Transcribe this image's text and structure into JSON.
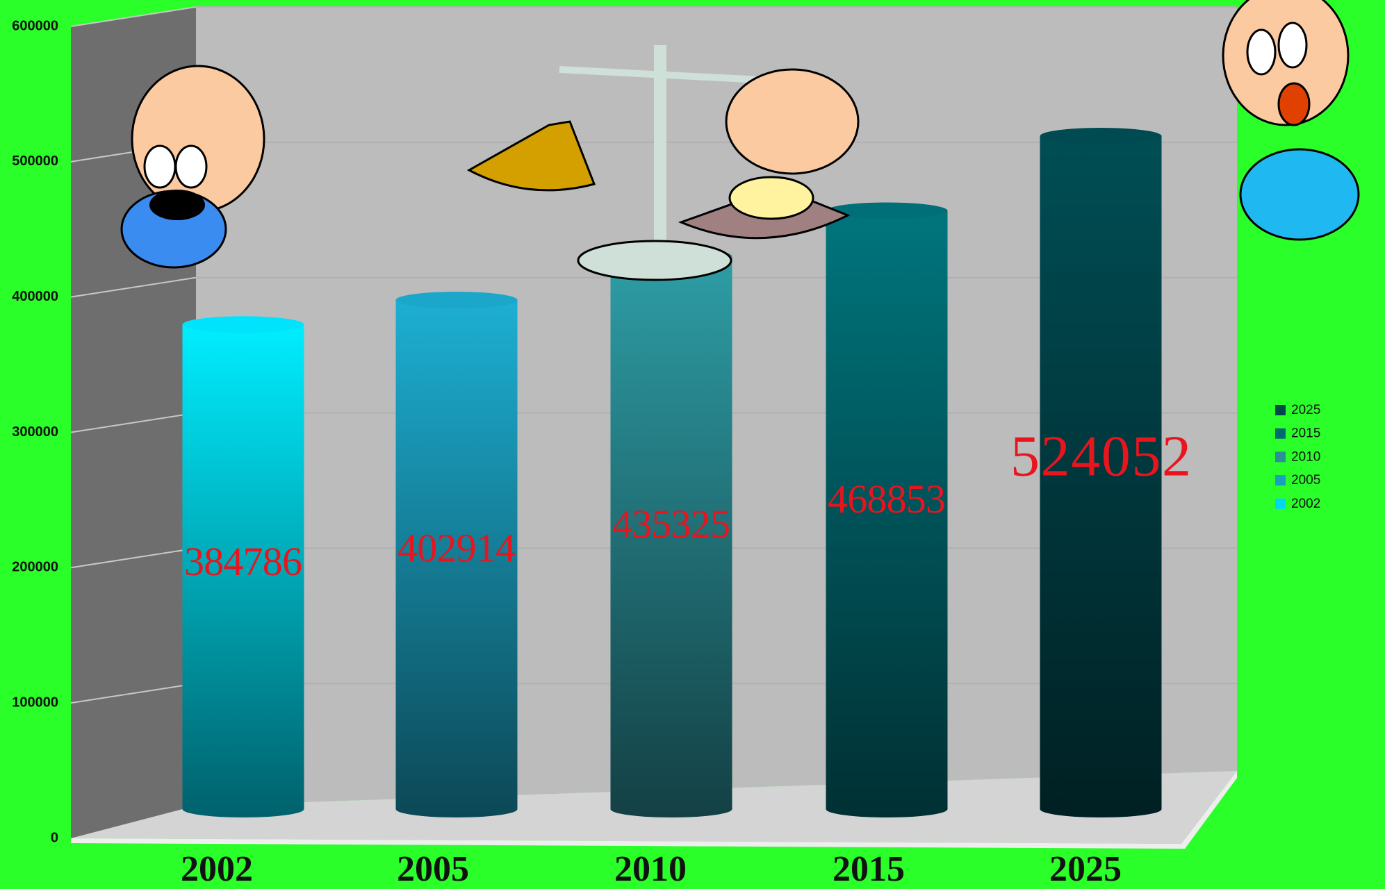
{
  "chart_data": {
    "type": "bar",
    "categories": [
      "2002",
      "2005",
      "2010",
      "2015",
      "2025"
    ],
    "values": [
      384786,
      402914,
      435325,
      468853,
      524052
    ],
    "colors": [
      "#00d8f0",
      "#1a9fc0",
      "#2a8f96",
      "#006a72",
      "#00474d"
    ],
    "ylim": [
      0,
      600000
    ],
    "yticks": [
      0,
      100000,
      200000,
      300000,
      400000,
      500000,
      600000
    ],
    "grid": true,
    "legend": "right"
  }
}
